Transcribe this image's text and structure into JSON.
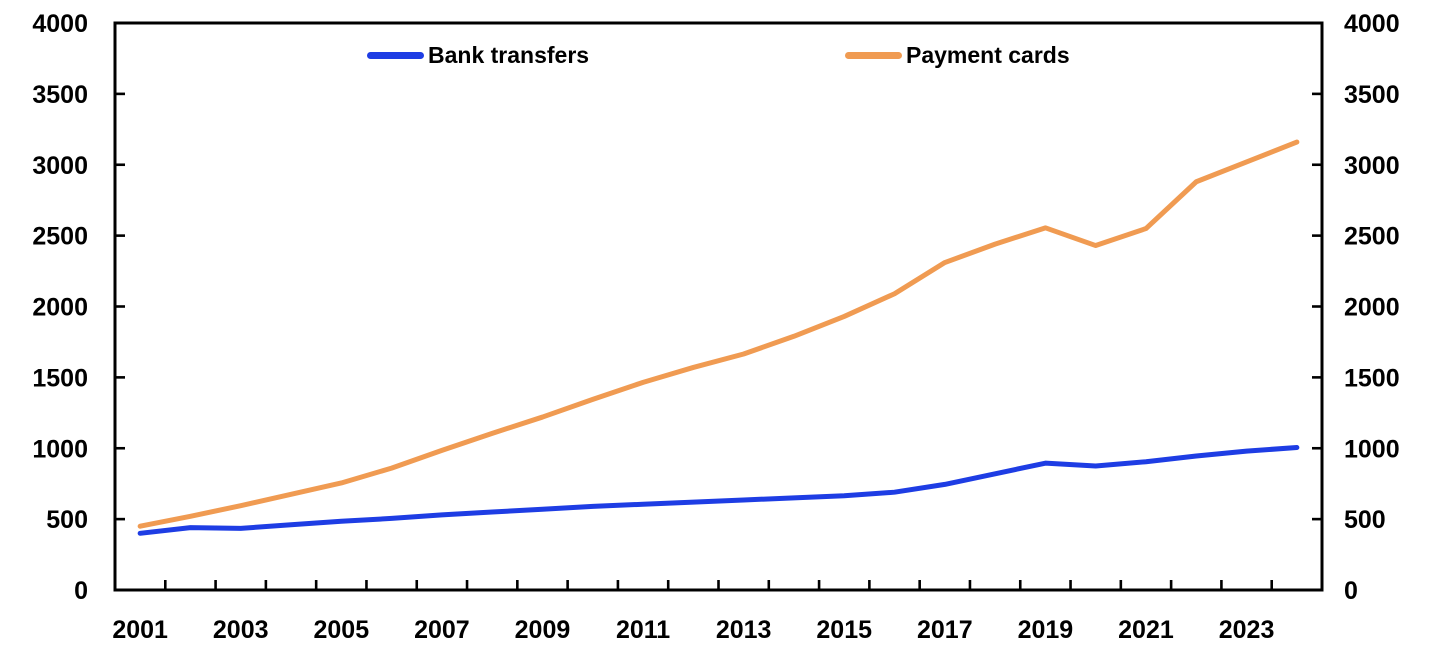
{
  "chart_data": {
    "type": "line",
    "title": "",
    "x": [
      2001,
      2002,
      2003,
      2004,
      2005,
      2006,
      2007,
      2008,
      2009,
      2010,
      2011,
      2012,
      2013,
      2014,
      2015,
      2016,
      2017,
      2018,
      2019,
      2020,
      2021,
      2022,
      2023,
      2024
    ],
    "series": [
      {
        "name": "Bank transfers",
        "color": "#1e3de4",
        "values": [
          400,
          440,
          435,
          460,
          485,
          505,
          530,
          550,
          570,
          590,
          605,
          620,
          635,
          650,
          665,
          690,
          745,
          820,
          895,
          875,
          905,
          945,
          980,
          1005
        ]
      },
      {
        "name": "Payment cards",
        "color": "#f09b52",
        "values": [
          450,
          520,
          595,
          675,
          755,
          860,
          985,
          1105,
          1220,
          1345,
          1465,
          1570,
          1665,
          1790,
          1930,
          2090,
          2310,
          2440,
          2555,
          2430,
          2550,
          2880,
          3020,
          3160
        ]
      }
    ],
    "y_axis": {
      "min": 0,
      "max": 4000,
      "step": 500,
      "tick_labels": [
        "0",
        "500",
        "1000",
        "1500",
        "2000",
        "2500",
        "3000",
        "3500",
        "4000"
      ],
      "sides": "both"
    },
    "x_axis": {
      "tick_labels": [
        "2001",
        "2003",
        "2005",
        "2007",
        "2009",
        "2011",
        "2013",
        "2015",
        "2017",
        "2019",
        "2021",
        "2023"
      ],
      "label_every": 2
    },
    "legend": {
      "position": "top-inside",
      "entries": [
        "Bank transfers",
        "Payment cards"
      ]
    },
    "grid": false,
    "frame": true,
    "axis_color": "#000000",
    "background_color": "#ffffff"
  }
}
